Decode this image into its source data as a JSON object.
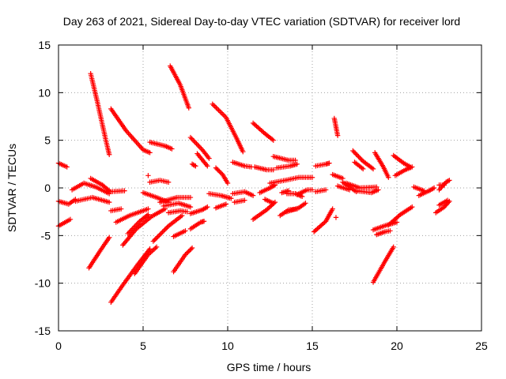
{
  "chart_data": {
    "type": "scatter",
    "title": "Day 263 of 2021, Sidereal Day-to-day VTEC variation (SDTVAR) for receiver lord",
    "xlabel": "GPS time / hours",
    "ylabel": "SDTVAR / TECUs",
    "xlim": [
      0,
      25
    ],
    "ylim": [
      -15,
      15
    ],
    "xticks": [
      "0",
      "5",
      "10",
      "15",
      "20",
      "25"
    ],
    "yticks": [
      "15",
      "10",
      "5",
      "0",
      "-5",
      "-10",
      "-15"
    ],
    "grid": true,
    "marker": "+",
    "color": "#ff0000",
    "series": [
      {
        "name": "SDTVAR",
        "arcs": [
          [
            [
              0.0,
              2.6
            ],
            [
              0.5,
              2.2
            ]
          ],
          [
            [
              0.0,
              -4.0
            ],
            [
              0.7,
              -3.3
            ]
          ],
          [
            [
              0.0,
              -1.4
            ],
            [
              0.6,
              -1.7
            ],
            [
              1.0,
              -1.2
            ]
          ],
          [
            [
              0.8,
              -0.2
            ],
            [
              1.5,
              0.5
            ],
            [
              2.2,
              0.1
            ],
            [
              3.0,
              -0.6
            ]
          ],
          [
            [
              1.0,
              -1.4
            ],
            [
              2.0,
              -1.0
            ],
            [
              3.0,
              -1.5
            ]
          ],
          [
            [
              1.9,
              12.0
            ],
            [
              2.3,
              9.0
            ],
            [
              2.8,
              5.0
            ],
            [
              3.0,
              3.5
            ]
          ],
          [
            [
              1.8,
              -8.4
            ],
            [
              2.5,
              -6.5
            ],
            [
              3.0,
              -5.2
            ]
          ],
          [
            [
              1.9,
              1.0
            ],
            [
              2.6,
              0.3
            ],
            [
              3.0,
              -0.3
            ]
          ],
          [
            [
              3.1,
              8.3
            ],
            [
              4.0,
              6.0
            ],
            [
              5.0,
              4.0
            ],
            [
              5.4,
              3.7
            ]
          ],
          [
            [
              3.1,
              -12.0
            ],
            [
              3.8,
              -10.2
            ],
            [
              4.7,
              -8.0
            ],
            [
              5.4,
              -6.4
            ]
          ],
          [
            [
              3.1,
              -2.4
            ],
            [
              3.7,
              -2.2
            ]
          ],
          [
            [
              3.0,
              -0.4
            ],
            [
              3.9,
              -0.3
            ]
          ],
          [
            [
              3.4,
              -3.6
            ],
            [
              4.2,
              -2.9
            ],
            [
              5.3,
              -2.2
            ]
          ],
          [
            [
              3.8,
              -6.0
            ],
            [
              4.6,
              -4.3
            ],
            [
              5.5,
              -3.0
            ],
            [
              6.3,
              -2.2
            ]
          ],
          [
            [
              4.1,
              -4.8
            ],
            [
              4.8,
              -3.5
            ],
            [
              5.3,
              -2.8
            ]
          ],
          [
            [
              4.5,
              -9.0
            ],
            [
              5.3,
              -7.0
            ],
            [
              5.8,
              -6.2
            ]
          ],
          [
            [
              5.3,
              1.3
            ]
          ],
          [
            [
              5.0,
              -0.5
            ],
            [
              5.8,
              -1.0
            ],
            [
              6.5,
              -1.5
            ]
          ],
          [
            [
              5.4,
              0.6
            ],
            [
              6.0,
              0.8
            ],
            [
              6.5,
              0.6
            ]
          ],
          [
            [
              5.4,
              4.8
            ],
            [
              6.3,
              4.4
            ],
            [
              6.7,
              4.1
            ]
          ],
          [
            [
              5.6,
              -5.6
            ],
            [
              6.5,
              -4.0
            ],
            [
              7.3,
              -2.9
            ]
          ],
          [
            [
              6.6,
              12.8
            ],
            [
              7.2,
              10.8
            ],
            [
              7.7,
              8.4
            ]
          ],
          [
            [
              6.0,
              -1.5
            ],
            [
              7.0,
              -1.0
            ],
            [
              7.8,
              -1.0
            ]
          ],
          [
            [
              6.2,
              -1.9
            ],
            [
              7.1,
              -1.6
            ],
            [
              7.8,
              -2.0
            ]
          ],
          [
            [
              6.5,
              -2.6
            ],
            [
              7.2,
              -2.4
            ],
            [
              7.6,
              -2.5
            ]
          ],
          [
            [
              6.8,
              -8.8
            ],
            [
              7.5,
              -7.0
            ],
            [
              7.9,
              -6.3
            ]
          ],
          [
            [
              6.8,
              -5.1
            ],
            [
              7.5,
              -4.5
            ]
          ],
          [
            [
              7.8,
              5.3
            ],
            [
              8.5,
              4.0
            ],
            [
              8.9,
              3.1
            ]
          ],
          [
            [
              7.8,
              -4.3
            ],
            [
              8.4,
              -3.6
            ],
            [
              8.6,
              -3.5
            ]
          ],
          [
            [
              7.8,
              -2.7
            ],
            [
              8.5,
              -2.3
            ],
            [
              8.8,
              -2.0
            ]
          ],
          [
            [
              7.9,
              2.5
            ],
            [
              8.1,
              2.3
            ]
          ],
          [
            [
              8.2,
              3.6
            ],
            [
              8.8,
              2.3
            ]
          ],
          [
            [
              9.1,
              8.8
            ],
            [
              9.9,
              7.4
            ],
            [
              10.5,
              5.3
            ],
            [
              10.9,
              3.8
            ]
          ],
          [
            [
              8.9,
              -0.6
            ],
            [
              9.6,
              -0.8
            ],
            [
              10.2,
              -1.1
            ]
          ],
          [
            [
              9.3,
              -2.1
            ],
            [
              9.9,
              -1.7
            ]
          ],
          [
            [
              9.3,
              2.1
            ],
            [
              9.7,
              1.4
            ],
            [
              10.0,
              0.5
            ]
          ],
          [
            [
              10.3,
              2.7
            ],
            [
              11.0,
              2.3
            ],
            [
              11.4,
              2.2
            ]
          ],
          [
            [
              10.3,
              -0.6
            ],
            [
              11.0,
              -0.4
            ],
            [
              11.5,
              -0.8
            ]
          ],
          [
            [
              10.4,
              -1.5
            ],
            [
              11.0,
              -1.3
            ]
          ],
          [
            [
              11.5,
              -3.3
            ],
            [
              12.3,
              -2.3
            ],
            [
              12.8,
              -1.5
            ]
          ],
          [
            [
              11.5,
              6.8
            ],
            [
              12.2,
              5.7
            ],
            [
              12.7,
              5.0
            ]
          ],
          [
            [
              11.6,
              2.2
            ],
            [
              12.3,
              1.9
            ],
            [
              12.7,
              1.9
            ]
          ],
          [
            [
              11.9,
              -0.5
            ],
            [
              12.5,
              0.0
            ],
            [
              12.8,
              0.3
            ]
          ],
          [
            [
              12.2,
              -1.2
            ],
            [
              12.7,
              -1.6
            ]
          ],
          [
            [
              12.5,
              0.5
            ],
            [
              13.4,
              0.8
            ],
            [
              14.2,
              1.1
            ],
            [
              15.0,
              1.1
            ]
          ],
          [
            [
              12.7,
              3.3
            ],
            [
              13.6,
              2.9
            ],
            [
              14.0,
              2.9
            ]
          ],
          [
            [
              12.9,
              2.1
            ],
            [
              13.7,
              2.3
            ],
            [
              14.1,
              2.5
            ]
          ],
          [
            [
              13.1,
              -2.9
            ],
            [
              13.6,
              -2.3
            ],
            [
              14.1,
              -2.2
            ]
          ],
          [
            [
              13.2,
              -0.5
            ],
            [
              13.6,
              -0.3
            ]
          ],
          [
            [
              13.5,
              -0.6
            ],
            [
              14.0,
              -0.6
            ],
            [
              14.4,
              -0.9
            ]
          ],
          [
            [
              13.5,
              -2.5
            ],
            [
              14.2,
              -2.1
            ],
            [
              14.6,
              -1.6
            ]
          ],
          [
            [
              14.1,
              -0.7
            ],
            [
              14.7,
              -0.2
            ],
            [
              15.0,
              -0.2
            ]
          ],
          [
            [
              15.1,
              -4.6
            ],
            [
              15.8,
              -3.5
            ],
            [
              16.2,
              -2.2
            ]
          ],
          [
            [
              15.2,
              -0.4
            ],
            [
              15.8,
              -0.2
            ]
          ],
          [
            [
              15.2,
              2.3
            ],
            [
              15.8,
              2.5
            ],
            [
              16.0,
              2.6
            ]
          ],
          [
            [
              16.3,
              7.3
            ],
            [
              16.5,
              5.5
            ]
          ],
          [
            [
              16.2,
              1.4
            ],
            [
              16.8,
              1.0
            ]
          ],
          [
            [
              16.5,
              0.2
            ],
            [
              17.2,
              -0.2
            ]
          ],
          [
            [
              16.4,
              -3.1
            ]
          ],
          [
            [
              16.8,
              0.6
            ],
            [
              17.6,
              -0.4
            ]
          ],
          [
            [
              17.0,
              0.5
            ],
            [
              17.8,
              0.0
            ],
            [
              18.8,
              0.1
            ]
          ],
          [
            [
              17.4,
              3.9
            ],
            [
              18.0,
              2.8
            ],
            [
              18.6,
              2.0
            ]
          ],
          [
            [
              17.5,
              2.7
            ],
            [
              18.0,
              2.0
            ]
          ],
          [
            [
              17.6,
              -0.3
            ],
            [
              18.5,
              -0.5
            ],
            [
              18.9,
              -0.2
            ]
          ],
          [
            [
              18.7,
              3.7
            ],
            [
              19.2,
              2.2
            ],
            [
              19.5,
              1.1
            ]
          ],
          [
            [
              18.6,
              -4.4
            ],
            [
              19.4,
              -3.9
            ],
            [
              20.0,
              -3.6
            ]
          ],
          [
            [
              18.6,
              -9.9
            ],
            [
              19.3,
              -7.7
            ],
            [
              19.8,
              -6.2
            ]
          ],
          [
            [
              18.8,
              -4.9
            ],
            [
              19.3,
              -4.6
            ],
            [
              19.6,
              -4.5
            ]
          ],
          [
            [
              19.8,
              3.4
            ],
            [
              20.4,
              2.6
            ],
            [
              20.8,
              2.2
            ]
          ],
          [
            [
              19.9,
              1.3
            ],
            [
              20.5,
              1.9
            ],
            [
              20.9,
              2.2
            ]
          ],
          [
            [
              19.5,
              -3.9
            ],
            [
              20.2,
              -2.8
            ],
            [
              20.9,
              -2.0
            ]
          ],
          [
            [
              21.3,
              -0.8
            ],
            [
              21.9,
              -0.3
            ],
            [
              22.2,
              0.0
            ]
          ],
          [
            [
              21.0,
              0.1
            ],
            [
              21.6,
              -0.3
            ]
          ],
          [
            [
              22.3,
              -2.6
            ],
            [
              22.8,
              -2.0
            ],
            [
              23.1,
              -1.4
            ]
          ],
          [
            [
              22.5,
              0.3
            ],
            [
              22.8,
              0.3
            ]
          ],
          [
            [
              22.5,
              -0.2
            ],
            [
              22.9,
              0.6
            ],
            [
              23.1,
              0.8
            ]
          ],
          [
            [
              22.5,
              -1.8
            ],
            [
              23.0,
              -1.3
            ]
          ]
        ]
      }
    ]
  }
}
